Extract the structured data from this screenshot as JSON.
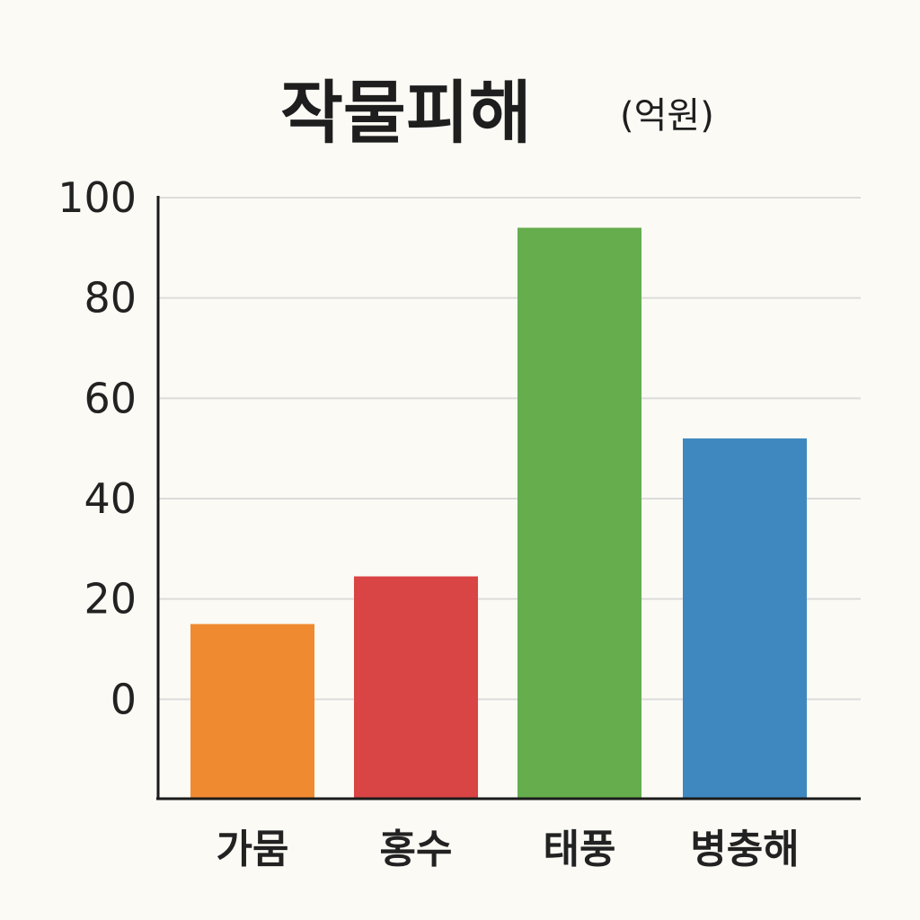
{
  "chart_data": {
    "type": "bar",
    "title": "작물피해",
    "title_unit": "(억원)",
    "categories": [
      "가뭄",
      "홍수",
      "태풍",
      "병충해"
    ],
    "values": [
      15,
      24.5,
      94,
      52
    ],
    "colors": [
      "#f08a30",
      "#d94444",
      "#66ad4d",
      "#3f88bf"
    ],
    "y_ticks": [
      0,
      20,
      40,
      60,
      80,
      100
    ],
    "ylim": [
      -20,
      100
    ],
    "grid": true,
    "legend": "none"
  }
}
